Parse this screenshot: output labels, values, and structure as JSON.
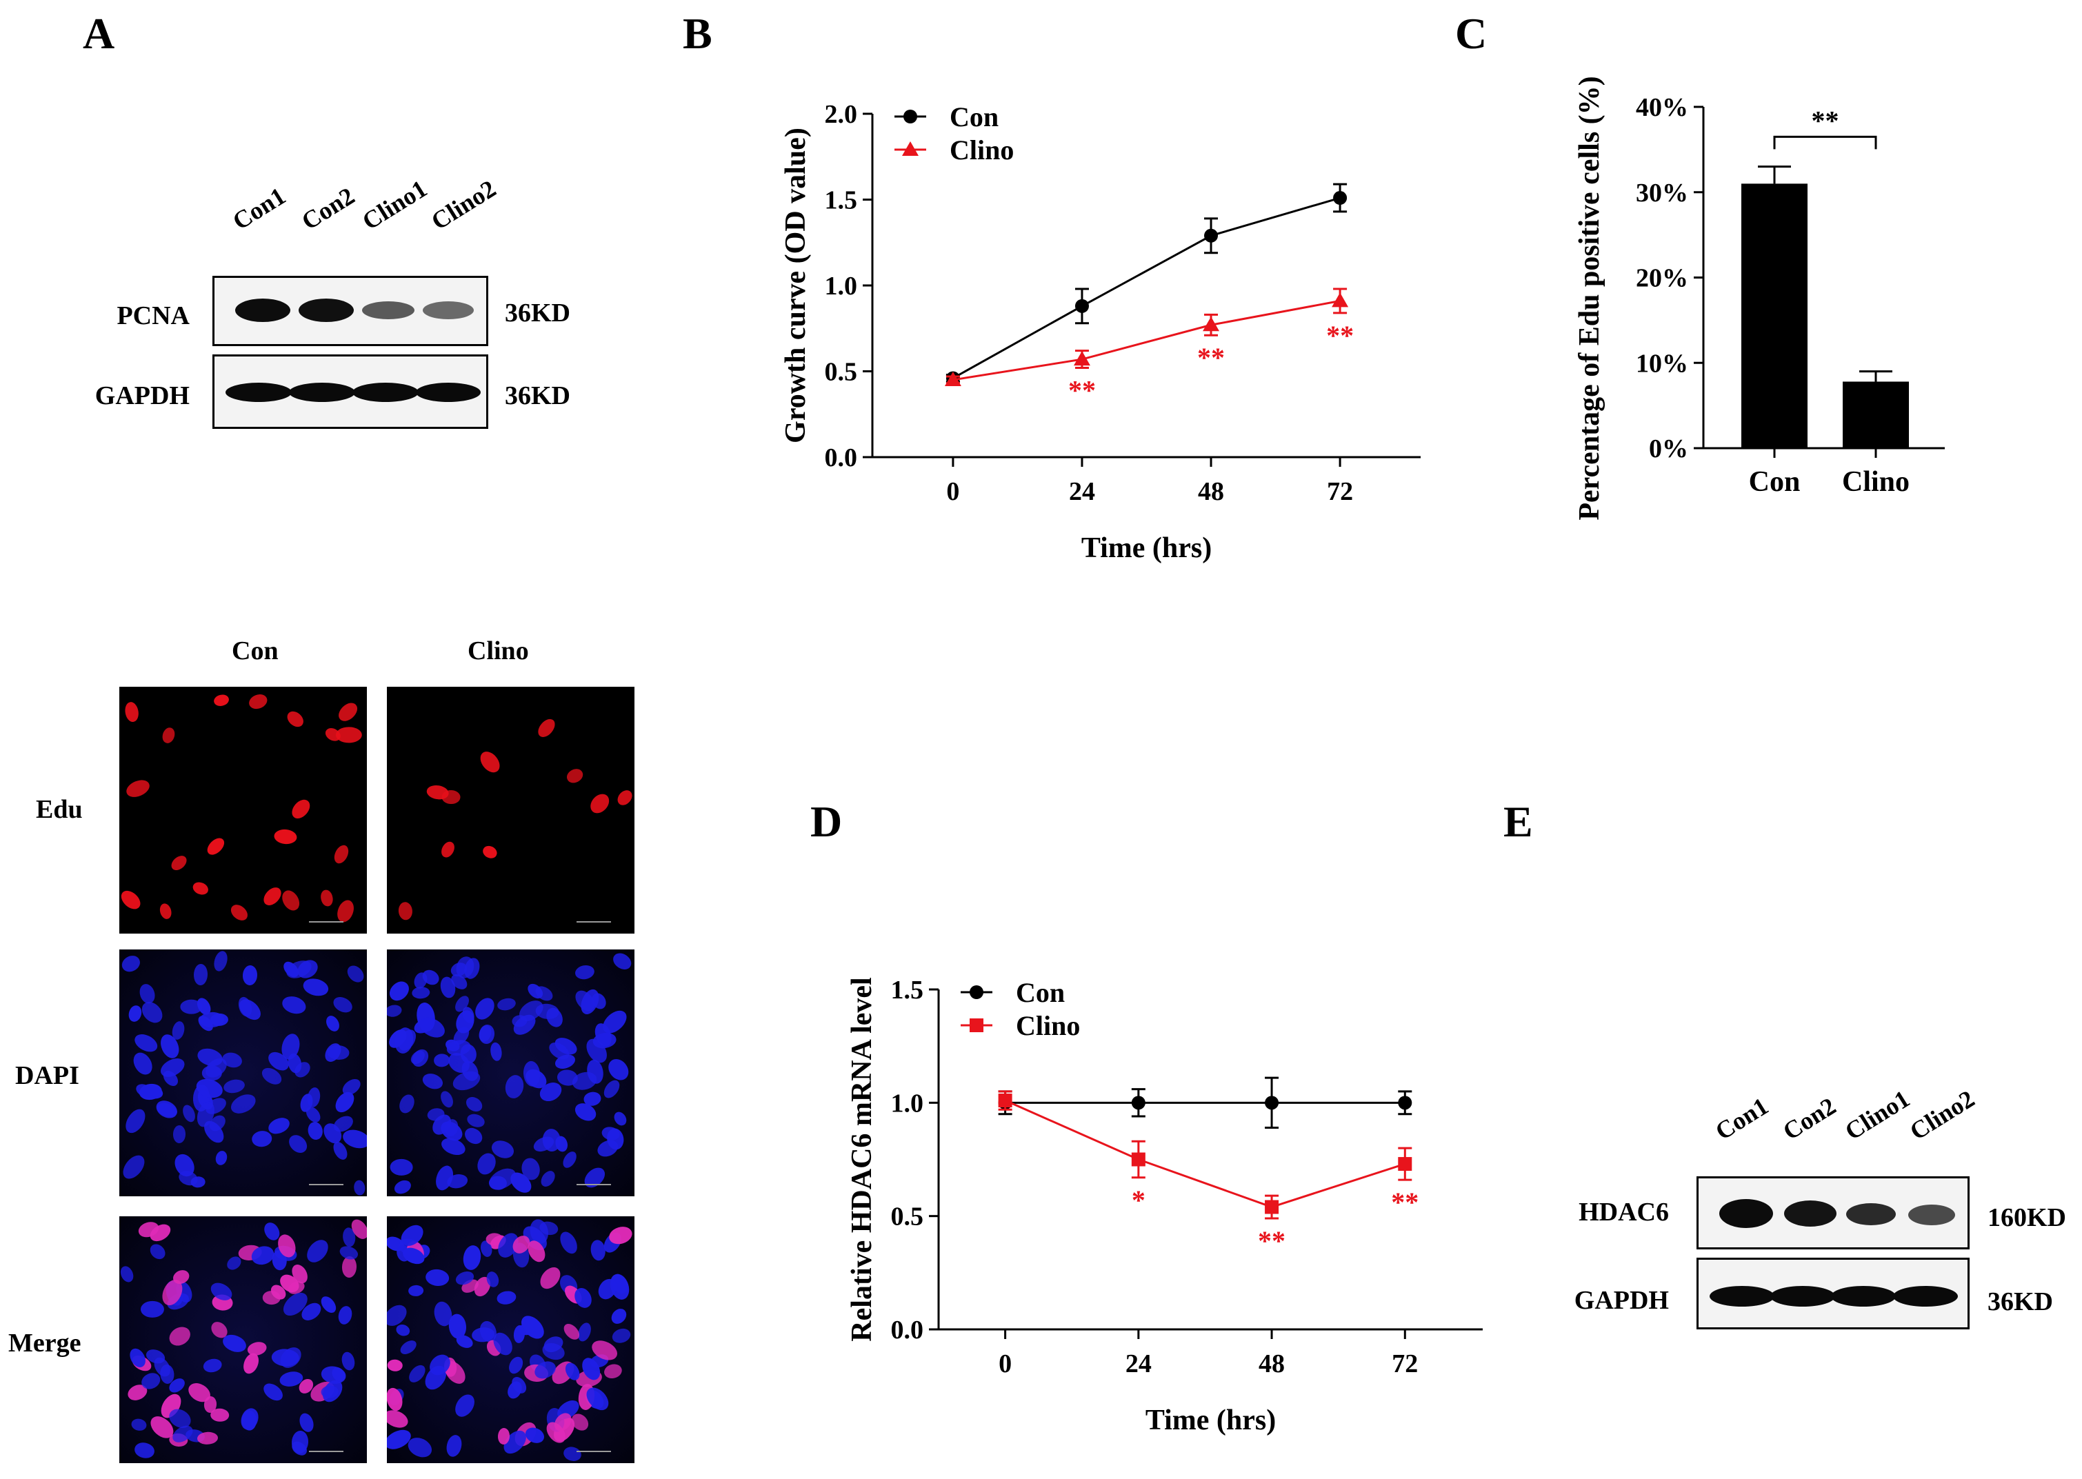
{
  "panels": {
    "a": "A",
    "b": "B",
    "c": "C",
    "d": "D",
    "e": "E"
  },
  "panel_a": {
    "lanes": [
      "Con1",
      "Con2",
      "Clino1",
      "Clino2"
    ],
    "rows": [
      {
        "label": "PCNA",
        "size": "36KD"
      },
      {
        "label": "GAPDH",
        "size": "36KD"
      }
    ]
  },
  "panel_e": {
    "lanes": [
      "Con1",
      "Con2",
      "Clino1",
      "Clino2"
    ],
    "rows": [
      {
        "label": "HDAC6",
        "size": "160KD"
      },
      {
        "label": "GAPDH",
        "size": "36KD"
      }
    ]
  },
  "micrographs": {
    "columns": [
      "Con",
      "Clino"
    ],
    "rows": [
      "Edu",
      "DAPI",
      "Merge"
    ],
    "colors": {
      "edu": "#e8101a",
      "dapi": "#1f1fe6",
      "merge": "#e02ab8"
    }
  },
  "colors": {
    "con": "#000000",
    "clino": "#e8141c"
  },
  "chart_data": [
    {
      "id": "B",
      "type": "line",
      "title": "",
      "xlabel": "Time (hrs)",
      "ylabel": "Growth curve (OD value)",
      "x": [
        0,
        24,
        48,
        72
      ],
      "xlim": [
        -15,
        87
      ],
      "ylim": [
        0,
        2.0
      ],
      "yticks": [
        "0.0",
        "0.5",
        "1.0",
        "1.5",
        "2.0"
      ],
      "xticks": [
        "0",
        "24",
        "48",
        "72"
      ],
      "legend": [
        "Con",
        "Clino"
      ],
      "series": [
        {
          "name": "Con",
          "marker": "circle",
          "values": [
            0.46,
            0.88,
            1.29,
            1.51
          ],
          "errors": [
            0.02,
            0.1,
            0.1,
            0.08
          ]
        },
        {
          "name": "Clino",
          "marker": "triangle",
          "values": [
            0.45,
            0.57,
            0.77,
            0.91
          ],
          "errors": [
            0.02,
            0.05,
            0.06,
            0.07
          ],
          "significance": [
            "",
            "**",
            "**",
            "**"
          ]
        }
      ]
    },
    {
      "id": "C",
      "type": "bar",
      "title": "",
      "xlabel": "",
      "ylabel": "Percentage of Edu positive cells (%)",
      "categories": [
        "Con",
        "Clino"
      ],
      "values": [
        31,
        7.8
      ],
      "errors": [
        2,
        1.2
      ],
      "ylim": [
        0,
        40
      ],
      "yticks": [
        "0%",
        "10%",
        "20%",
        "30%",
        "40%"
      ],
      "significance": "**"
    },
    {
      "id": "D",
      "type": "line",
      "title": "",
      "xlabel": "Time (hrs)",
      "ylabel": "Relative HDAC6 mRNA level",
      "x": [
        0,
        24,
        48,
        72
      ],
      "xlim": [
        -12,
        86
      ],
      "ylim": [
        0,
        1.5
      ],
      "yticks": [
        "0.0",
        "0.5",
        "1.0",
        "1.5"
      ],
      "xticks": [
        "0",
        "24",
        "48",
        "72"
      ],
      "legend": [
        "Con",
        "Clino"
      ],
      "series": [
        {
          "name": "Con",
          "marker": "circle",
          "values": [
            1.0,
            1.0,
            1.0,
            1.0
          ],
          "errors": [
            0.05,
            0.06,
            0.11,
            0.05
          ]
        },
        {
          "name": "Clino",
          "marker": "square",
          "values": [
            1.01,
            0.75,
            0.54,
            0.73
          ],
          "errors": [
            0.04,
            0.08,
            0.05,
            0.07
          ],
          "significance": [
            "",
            "*",
            "**",
            "**"
          ]
        }
      ]
    }
  ]
}
